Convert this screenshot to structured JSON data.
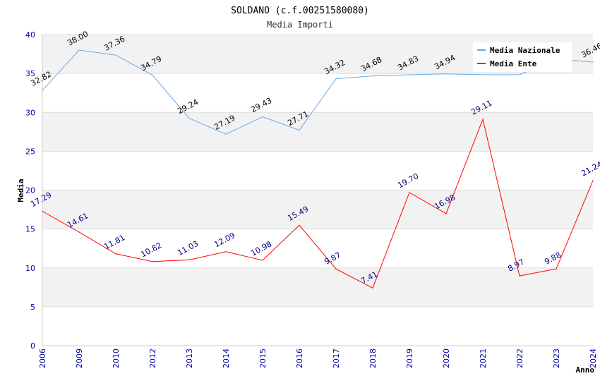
{
  "chart_data": {
    "type": "line",
    "title": "SOLDANO (c.f.00251580080)",
    "subtitle": "Media Importi",
    "xlabel": "Anno",
    "ylabel": "Media",
    "ylim": [
      0,
      40
    ],
    "yticks": [
      "0",
      "5",
      "10",
      "15",
      "20",
      "25",
      "30",
      "35",
      "40"
    ],
    "categories": [
      "2006",
      "2009",
      "2010",
      "2012",
      "2013",
      "2014",
      "2015",
      "2016",
      "2017",
      "2018",
      "2019",
      "2020",
      "2021",
      "2022",
      "2023",
      "2024"
    ],
    "legend_position": "top-right",
    "series": [
      {
        "name": "Media Nazionale",
        "color": "#6aaae6",
        "values": [
          32.82,
          38.0,
          37.36,
          34.79,
          29.24,
          27.19,
          29.43,
          27.71,
          34.32,
          34.68,
          34.83,
          34.94,
          34.84,
          34.84,
          36.85,
          36.46
        ],
        "labels": [
          "32.82",
          "38.00",
          "37.36",
          "34.79",
          "29.24",
          "27.19",
          "29.43",
          "27.71",
          "34.32",
          "34.68",
          "34.83",
          "34.94",
          "",
          "",
          "",
          "36.46"
        ]
      },
      {
        "name": "Media Ente",
        "color": "#ff0000",
        "values": [
          17.29,
          14.61,
          11.81,
          10.82,
          11.03,
          12.09,
          10.98,
          15.49,
          9.87,
          7.41,
          19.7,
          16.98,
          29.11,
          8.97,
          9.88,
          21.24
        ],
        "labels": [
          "17.29",
          "14.61",
          "11.81",
          "10.82",
          "11.03",
          "12.09",
          "10.98",
          "15.49",
          "9.87",
          "7.41",
          "19.70",
          "16.98",
          "29.11",
          "8.97",
          "9.88",
          "21.24"
        ]
      }
    ]
  }
}
